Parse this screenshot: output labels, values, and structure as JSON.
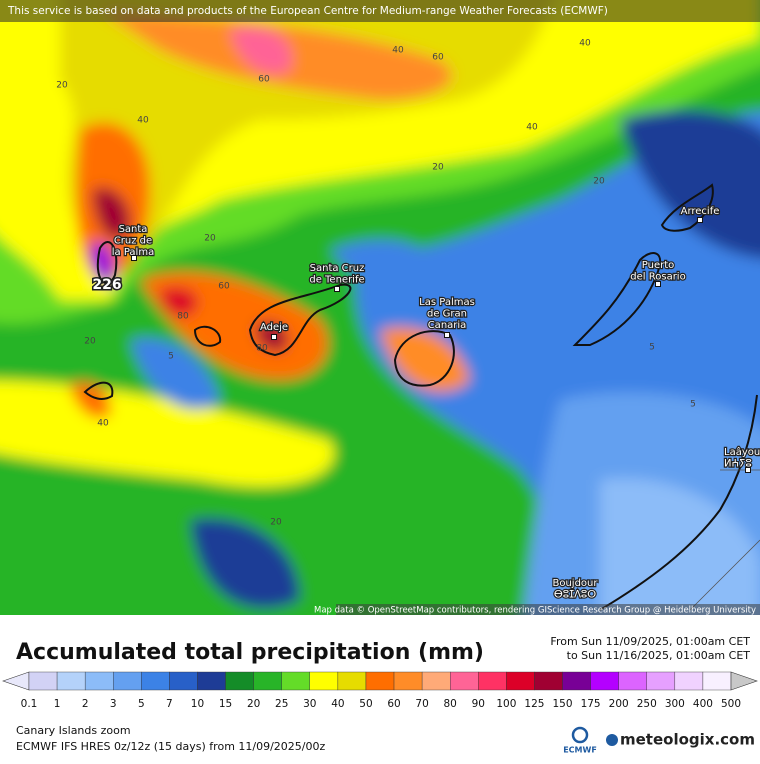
{
  "header_notice": "This service is based on data and products of the European Centre for Medium-range Weather Forecasts (ECMWF)",
  "map": {
    "contour_labels": [
      40,
      60,
      60,
      40,
      20,
      40,
      40,
      20,
      20,
      20,
      60,
      80,
      5,
      20,
      80,
      5,
      5,
      40,
      20
    ],
    "max_label": 226,
    "places": [
      {
        "lines": [
          "Santa",
          "Cruz de",
          "la Palma"
        ]
      },
      {
        "lines": [
          "Santa Cruz",
          "de Tenerife"
        ]
      },
      {
        "lines": [
          "Las Palmas",
          "de Gran",
          "Canaria"
        ]
      },
      {
        "lines": [
          "Adeje"
        ]
      },
      {
        "lines": [
          "Arrecife"
        ]
      },
      {
        "lines": [
          "Puerto",
          "del Rosario"
        ]
      },
      {
        "lines": [
          "Laâyou",
          "ⵍⵄⵢⵓ"
        ]
      },
      {
        "lines": [
          "Boujdour",
          "ⴱⵓⵊⴷⵓⵔ"
        ]
      }
    ],
    "attribution": "Map data © OpenStreetMap contributors, rendering GIScience Research Group @ Heidelberg University"
  },
  "title": "Accumulated total precipitation (mm)",
  "period": {
    "from": "From Sun 11/09/2025, 01:00am CET",
    "to": "to Sun 11/16/2025, 01:00am CET"
  },
  "colorbar": {
    "levels": [
      0.1,
      1,
      2,
      3,
      5,
      7,
      10,
      15,
      20,
      25,
      30,
      40,
      50,
      60,
      70,
      80,
      90,
      100,
      125,
      150,
      175,
      200,
      250,
      300,
      400,
      500
    ],
    "under_color": "#e8e8fa",
    "colors": [
      "#d2d2f5",
      "#b4d2fa",
      "#8cbcf8",
      "#64a0f0",
      "#3c82e6",
      "#2860c8",
      "#1e3c96",
      "#148c28",
      "#28b428",
      "#64dc28",
      "#ffff00",
      "#e6dc00",
      "#ff6e00",
      "#ff8c28",
      "#ffaa78",
      "#ff6496",
      "#ff3264",
      "#dc0028",
      "#a00032",
      "#780096",
      "#b400ff",
      "#dc64ff",
      "#e6a0ff",
      "#f0d2ff",
      "#f8f0ff"
    ],
    "over_color": "#c8c8c8"
  },
  "footer": {
    "region": "Canary Islands zoom",
    "model": "ECMWF IFS HRES 0z/12z (15 days) from 11/09/2025/00z",
    "ecmwf_logo": "ECMWF",
    "brand": "meteologix.com"
  }
}
